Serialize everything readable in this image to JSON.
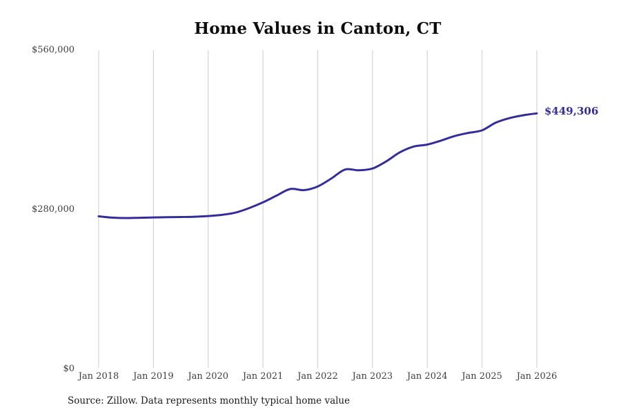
{
  "title": "Home Values in Canton, CT",
  "source_note": "Source: Zillow. Data represents monthly typical home value",
  "latest_value_label": "$449,306",
  "colors": {
    "line": "#332d9c",
    "latest_label": "#332d9c",
    "grid": "#cccccc",
    "title_text": "#0d0d0d",
    "axis_text": "#3d3d3d",
    "source_text": "#1a1a1a",
    "background": "#ffffff"
  },
  "y_axis": {
    "ticks": [
      {
        "label": "$0",
        "value": 0
      },
      {
        "label": "$280,000",
        "value": 280000
      },
      {
        "label": "$560,000",
        "value": 560000
      }
    ]
  },
  "x_axis": {
    "ticks": [
      "Jan 2018",
      "Jan 2019",
      "Jan 2020",
      "Jan 2021",
      "Jan 2022",
      "Jan 2023",
      "Jan 2024",
      "Jan 2025",
      "Jan 2026"
    ]
  },
  "chart_data": {
    "type": "line",
    "title": "Home Values in Canton, CT",
    "xlabel": "",
    "ylabel": "",
    "ylim": [
      0,
      560000
    ],
    "grid": "vertical-only",
    "legend": "none",
    "x": [
      "Jan 2018",
      "Apr 2018",
      "Jul 2018",
      "Oct 2018",
      "Jan 2019",
      "Apr 2019",
      "Jul 2019",
      "Oct 2019",
      "Jan 2020",
      "Apr 2020",
      "Jul 2020",
      "Oct 2020",
      "Jan 2021",
      "Apr 2021",
      "Jul 2021",
      "Oct 2021",
      "Jan 2022",
      "Apr 2022",
      "Jul 2022",
      "Oct 2022",
      "Jan 2023",
      "Apr 2023",
      "Jul 2023",
      "Oct 2023",
      "Jan 2024",
      "Apr 2024",
      "Jul 2024",
      "Oct 2024",
      "Jan 2025",
      "Apr 2025",
      "Jul 2025",
      "Oct 2025",
      "Jan 2026"
    ],
    "values": [
      268500,
      266200,
      265400,
      266000,
      266600,
      267000,
      267300,
      267700,
      269000,
      271000,
      275000,
      283000,
      293000,
      305000,
      316500,
      314500,
      321000,
      335000,
      350700,
      349300,
      352500,
      365000,
      381000,
      391000,
      394500,
      401500,
      409500,
      415000,
      419500,
      433000,
      441000,
      446000,
      449306
    ],
    "last_point_label": "$449,306"
  }
}
